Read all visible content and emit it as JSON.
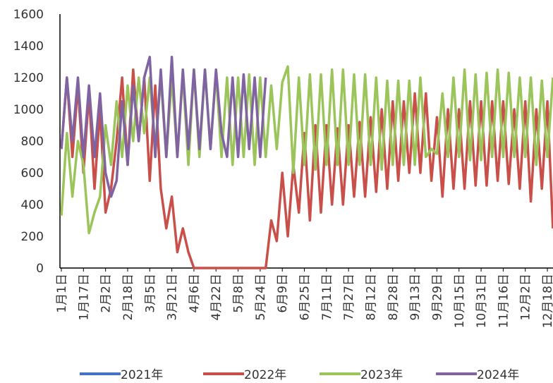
{
  "chart_data": {
    "type": "line",
    "categories": [
      "1月1日",
      null,
      null,
      null,
      "1月17日",
      null,
      null,
      null,
      "2月2日",
      null,
      null,
      null,
      "2月18日",
      null,
      null,
      null,
      "3月5日",
      null,
      null,
      null,
      "3月21日",
      null,
      null,
      null,
      "4月6日",
      null,
      null,
      null,
      "4月22日",
      null,
      null,
      null,
      "5月8日",
      null,
      null,
      null,
      "5月24日",
      null,
      null,
      null,
      "6月9日",
      null,
      null,
      null,
      "6月25日",
      null,
      null,
      null,
      "7月11日",
      null,
      null,
      null,
      "7月27日",
      null,
      null,
      null,
      "8月12日",
      null,
      null,
      null,
      "8月28日",
      null,
      null,
      null,
      "9月13日",
      null,
      null,
      null,
      "9月29日",
      null,
      null,
      null,
      "10月15日",
      null,
      null,
      null,
      "10月31日",
      null,
      null,
      null,
      "11月16日",
      null,
      null,
      null,
      "12月2日",
      null,
      null,
      null,
      "12月18日",
      null
    ],
    "series": [
      {
        "name": "2021年",
        "color": "#4472c4",
        "values": [
          null,
          null,
          null,
          null,
          null,
          null,
          null,
          null,
          null,
          null,
          null,
          null,
          null,
          null,
          null,
          null,
          null,
          null,
          null,
          null,
          null,
          null,
          null,
          null,
          null,
          null,
          null,
          null,
          null,
          null,
          null,
          null,
          null,
          null,
          null,
          null,
          null,
          null,
          null,
          null,
          null,
          null,
          null,
          null,
          null,
          null,
          null,
          null,
          null,
          null,
          null,
          null,
          null,
          null,
          null,
          null,
          null,
          null,
          null,
          null,
          null,
          null,
          null,
          null,
          null,
          null,
          null,
          null,
          null,
          null,
          null,
          null,
          null,
          null,
          null,
          null,
          null,
          null,
          null,
          null,
          null,
          null,
          null,
          null,
          null,
          null,
          null,
          null,
          null,
          null
        ]
      },
      {
        "name": "2022年",
        "color": "#c9504a",
        "values": [
          750,
          1200,
          700,
          1150,
          600,
          1100,
          500,
          1000,
          350,
          500,
          800,
          1200,
          650,
          1250,
          800,
          1200,
          550,
          1150,
          500,
          250,
          450,
          100,
          250,
          100,
          0,
          0,
          0,
          0,
          0,
          0,
          0,
          0,
          0,
          0,
          0,
          0,
          0,
          0,
          300,
          170,
          600,
          200,
          650,
          350,
          850,
          300,
          900,
          350,
          900,
          400,
          880,
          400,
          900,
          450,
          920,
          450,
          950,
          480,
          1000,
          500,
          1050,
          550,
          1050,
          600,
          1100,
          600,
          1100,
          550,
          950,
          450,
          1000,
          500,
          1000,
          500,
          1050,
          520,
          1050,
          520,
          1050,
          550,
          1050,
          530,
          1000,
          500,
          1050,
          420,
          1000,
          500,
          1050,
          250
        ]
      },
      {
        "name": "2023年",
        "color": "#9bc45a",
        "values": [
          330,
          850,
          450,
          800,
          650,
          220,
          350,
          450,
          900,
          650,
          1050,
          700,
          1150,
          800,
          1200,
          850,
          1200,
          750,
          1200,
          700,
          1200,
          700,
          1220,
          650,
          1250,
          700,
          1250,
          750,
          1230,
          700,
          1200,
          650,
          1200,
          700,
          1220,
          650,
          1200,
          700,
          1150,
          750,
          1170,
          1270,
          600,
          1200,
          650,
          1220,
          620,
          1220,
          650,
          1250,
          650,
          1250,
          650,
          1220,
          650,
          1220,
          650,
          1200,
          620,
          1180,
          650,
          1180,
          650,
          1180,
          650,
          1200,
          700,
          750,
          720,
          1100,
          700,
          1200,
          700,
          1250,
          680,
          1220,
          680,
          1230,
          700,
          1250,
          700,
          1230,
          700,
          1200,
          700,
          1200,
          650,
          1180,
          700,
          1200
        ]
      },
      {
        "name": "2024年",
        "color": "#8064a2",
        "values": [
          750,
          1200,
          800,
          1200,
          700,
          1150,
          700,
          1100,
          600,
          450,
          550,
          1050,
          650,
          1150,
          800,
          1200,
          1330,
          700,
          1250,
          700,
          1330,
          700,
          1250,
          750,
          1250,
          750,
          1250,
          750,
          1250,
          850,
          700,
          1200,
          700,
          1220,
          750,
          1200,
          700,
          1200,
          null,
          null,
          null,
          null,
          null,
          null,
          null,
          null,
          null,
          null,
          null,
          null,
          null,
          null,
          null,
          null,
          null,
          null,
          null,
          null,
          null,
          null,
          null,
          null,
          null,
          null,
          null,
          null,
          null,
          null,
          null,
          null,
          null,
          null,
          null,
          null,
          null,
          null,
          null,
          null,
          null,
          null,
          null,
          null,
          null,
          null,
          null,
          null,
          null,
          null,
          null,
          null
        ]
      }
    ],
    "ylim": [
      0,
      1600
    ],
    "yticks": [
      0,
      200,
      400,
      600,
      800,
      1000,
      1200,
      1400,
      1600
    ],
    "grid": false,
    "legend": "bottom"
  }
}
